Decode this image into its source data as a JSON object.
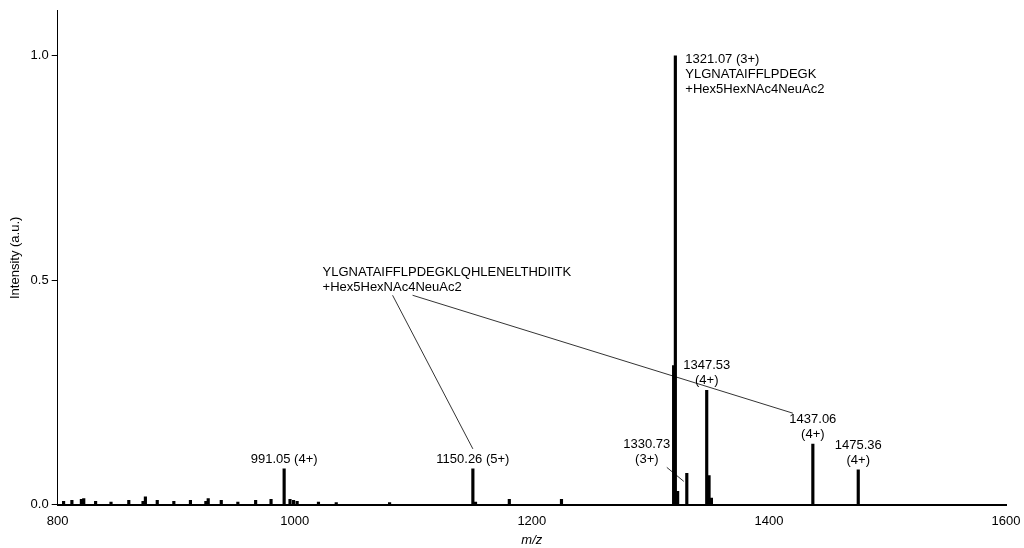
{
  "chart_data": {
    "type": "bar",
    "xlabel": "m/z",
    "ylabel": "Intensity (a.u.)",
    "x": [
      805,
      812,
      820,
      822,
      832,
      845,
      860,
      872,
      874,
      884,
      898,
      912,
      925,
      927,
      938,
      952,
      967,
      980,
      991.05,
      996,
      999,
      1002,
      1020,
      1035,
      1080,
      1150.26,
      1152.5,
      1181,
      1225,
      1319.6,
      1321.07,
      1323,
      1330.73,
      1347.53,
      1349.5,
      1351.5,
      1437.06,
      1475.36
    ],
    "series": [
      {
        "color": "#000000",
        "values": [
          0.008,
          0.01,
          0.012,
          0.014,
          0.008,
          0.006,
          0.01,
          0.008,
          0.018,
          0.01,
          0.008,
          0.01,
          0.008,
          0.014,
          0.01,
          0.006,
          0.01,
          0.012,
          0.08,
          0.012,
          0.01,
          0.008,
          0.006,
          0.005,
          0.005,
          0.08,
          0.006,
          0.012,
          0.012,
          0.31,
          1.0,
          0.03,
          0.07,
          0.255,
          0.065,
          0.015,
          0.135,
          0.078
        ]
      }
    ],
    "xlim": [
      800,
      1600
    ],
    "xticks": [
      800,
      1000,
      1200,
      1400,
      1600
    ],
    "ylim": [
      0,
      1.1
    ],
    "yticks": [
      {
        "value": 0,
        "label": "0.0"
      },
      {
        "value": 0.5,
        "label": "0.5"
      },
      {
        "value": 1,
        "label": "1.0"
      }
    ],
    "annotations": [
      {
        "text": "991.05 (4+)",
        "x": 991.05,
        "y": 0.08
      },
      {
        "text": "1150.26 (5+)",
        "x": 1150.26,
        "y": 0.08
      },
      {
        "text": "1321.07 (3+)\nYLGNATAIFFLPDEGK\n+Hex5HexNAc4NeuAc2",
        "x": 1321.07,
        "y": 1.0
      },
      {
        "text": "1330.73\n(3+)",
        "x": 1330.73,
        "y": 0.07
      },
      {
        "text": "1347.53\n(4+)",
        "x": 1347.53,
        "y": 0.255
      },
      {
        "text": "1437.06\n(4+)",
        "x": 1437.06,
        "y": 0.135
      },
      {
        "text": "1475.36\n(4+)",
        "x": 1475.36,
        "y": 0.078
      },
      "YLGNATAIFFLPDEGKLQHLENELTHDIITK\n+Hex5HexNAc4NeuAc2"
    ]
  }
}
